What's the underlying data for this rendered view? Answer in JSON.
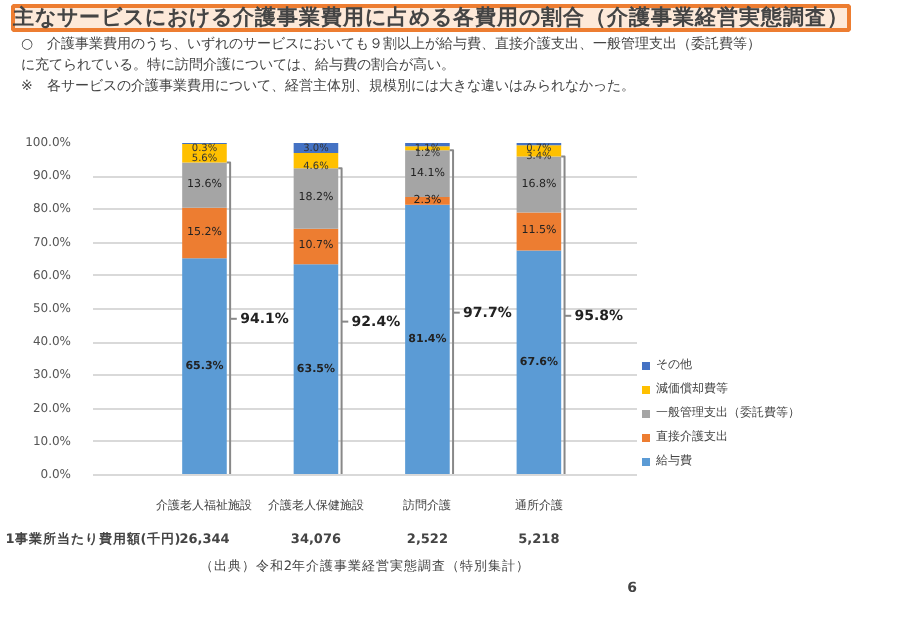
{
  "chart_data": {
    "type": "bar",
    "stacked": true,
    "title": "主なサービスにおける介護事業費用に占める各費用の割合（介護事業経営実態調査）",
    "subtitle": "○　介護事業費用のうち、いずれのサービスにおいても９割以上が給与費、直接介護支出、一般管理支出（委託費等）に充てられている。特に訪問介護については、給与費の割合が高い。\n※　各サービスの介護事業費用について、経営主体別、規模別には大きな違いはみられなかった。",
    "categories": [
      "介護老人福祉施設",
      "介護老人保健施設",
      "訪問介護",
      "通所介護"
    ],
    "series": [
      {
        "name": "給与費",
        "color": "#5b9bd5",
        "values": [
          65.3,
          63.5,
          81.4,
          67.6
        ],
        "value_labels": [
          "65.3%",
          "63.5%",
          "81.4%",
          "67.6%"
        ]
      },
      {
        "name": "直接介護支出",
        "color": "#ed7d31",
        "values": [
          15.2,
          10.7,
          2.3,
          11.5
        ],
        "value_labels": [
          "15.2%",
          "10.7%",
          "2.3%",
          "11.5%"
        ]
      },
      {
        "name": "一般管理支出（委託費等）",
        "color": "#a5a5a5",
        "values": [
          13.6,
          18.2,
          14.1,
          16.8
        ],
        "value_labels": [
          "13.6%",
          "18.2%",
          "14.1%",
          "16.8%"
        ]
      },
      {
        "name": "減価償却費等",
        "color": "#ffc000",
        "values": [
          5.6,
          4.6,
          1.2,
          3.4
        ],
        "value_labels": [
          "5.6%",
          "4.6%",
          "1.2%",
          "3.4%"
        ]
      },
      {
        "name": "その他",
        "color": "#4472c4",
        "values": [
          0.3,
          3.0,
          1.1,
          0.7
        ],
        "value_labels": [
          "0.3%",
          "3.0%",
          "1.1%",
          "0.7%"
        ]
      }
    ],
    "ylim": [
      0,
      100
    ],
    "yticks": [
      {
        "value": 0,
        "label": "0.0%"
      },
      {
        "value": 10,
        "label": "10.0%"
      },
      {
        "value": 20,
        "label": "20.0%"
      },
      {
        "value": 30,
        "label": "30.0%"
      },
      {
        "value": 40,
        "label": "40.0%"
      },
      {
        "value": 50,
        "label": "50.0%"
      },
      {
        "value": 60,
        "label": "60.0%"
      },
      {
        "value": 70,
        "label": "70.0%"
      },
      {
        "value": 80,
        "label": "80.0%"
      },
      {
        "value": 90,
        "label": "90.0%"
      },
      {
        "value": 100,
        "label": "100.0%"
      }
    ],
    "grid": "y",
    "legend": "right",
    "annotations": [
      "94.1%",
      "92.4%",
      "97.7%",
      "95.8%",
      "1事業所当たり費用額(千円)",
      "26,344",
      "34,076",
      "2,522",
      "5,218",
      "（出典）令和2年介護事業経営実態調査（特別集計）",
      "6"
    ]
  }
}
